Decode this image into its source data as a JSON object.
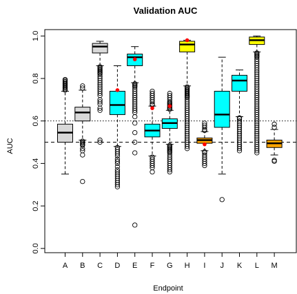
{
  "chart_data": {
    "type": "box",
    "title": "Validation AUC",
    "xlabel": "Endpoint",
    "ylabel": "AUC",
    "ylim": [
      -0.02,
      1.03
    ],
    "yticks": [
      "0.0",
      "0.2",
      "0.4",
      "0.6",
      "0.8",
      "1.0"
    ],
    "reference_lines": [
      {
        "y": 0.6,
        "style": "dotted"
      },
      {
        "y": 0.5,
        "style": "dashed"
      }
    ],
    "colors": {
      "gray": "#d9d9d9",
      "cyan": "#00ffff",
      "yellow": "#ffff00",
      "orange": "#ffa500",
      "mean_point": "#ff0000"
    },
    "categories": [
      "A",
      "B",
      "C",
      "D",
      "E",
      "F",
      "G",
      "H",
      "I",
      "J",
      "K",
      "L",
      "M"
    ],
    "boxes": [
      {
        "label": "A",
        "color": "gray",
        "whisker_low": 0.35,
        "q1": 0.5,
        "median": 0.545,
        "q3": 0.585,
        "whisker_high": 0.74,
        "mean": null,
        "outliers": [
          0.745,
          0.75,
          0.755,
          0.76,
          0.765,
          0.77,
          0.775,
          0.78,
          0.785,
          0.79,
          0.795
        ]
      },
      {
        "label": "B",
        "color": "gray",
        "whisker_low": 0.51,
        "q1": 0.6,
        "median": 0.64,
        "q3": 0.665,
        "whisker_high": 0.745,
        "mean": null,
        "outliers": [
          0.505,
          0.5,
          0.495,
          0.49,
          0.485,
          0.47,
          0.46,
          0.44,
          0.315,
          0.755,
          0.765
        ]
      },
      {
        "label": "C",
        "color": "gray",
        "whisker_low": 0.86,
        "q1": 0.92,
        "median": 0.95,
        "q3": 0.965,
        "whisker_high": 0.975,
        "mean": null,
        "outliers": [
          0.855,
          0.85,
          0.845,
          0.84,
          0.835,
          0.83,
          0.825,
          0.82,
          0.81,
          0.8,
          0.79,
          0.78,
          0.77,
          0.76,
          0.75,
          0.74,
          0.73,
          0.72,
          0.7,
          0.69,
          0.68,
          0.66,
          0.65,
          0.51,
          0.5
        ]
      },
      {
        "label": "D",
        "color": "cyan",
        "whisker_low": 0.48,
        "q1": 0.63,
        "median": 0.675,
        "q3": 0.74,
        "whisker_high": 0.86,
        "mean": 0.745,
        "outliers": [
          0.475,
          0.465,
          0.455,
          0.445,
          0.435,
          0.42,
          0.41,
          0.4,
          0.385,
          0.37,
          0.36,
          0.35,
          0.34,
          0.33,
          0.32,
          0.31,
          0.3,
          0.29
        ]
      },
      {
        "label": "E",
        "color": "cyan",
        "whisker_low": 0.78,
        "q1": 0.86,
        "median": 0.9,
        "q3": 0.915,
        "whisker_high": 0.95,
        "mean": 0.89,
        "outliers": [
          0.775,
          0.77,
          0.765,
          0.76,
          0.75,
          0.74,
          0.73,
          0.72,
          0.71,
          0.7,
          0.69,
          0.68,
          0.67,
          0.66,
          0.65,
          0.64,
          0.62,
          0.59,
          0.545,
          0.5,
          0.45,
          0.11
        ]
      },
      {
        "label": "F",
        "color": "cyan",
        "whisker_low": 0.435,
        "q1": 0.525,
        "median": 0.555,
        "q3": 0.585,
        "whisker_high": 0.67,
        "mean": 0.66,
        "outliers": [
          0.675,
          0.68,
          0.69,
          0.7,
          0.71,
          0.72,
          0.73,
          0.74,
          0.43,
          0.42,
          0.41,
          0.4,
          0.39,
          0.38,
          0.36
        ]
      },
      {
        "label": "G",
        "color": "cyan",
        "whisker_low": 0.49,
        "q1": 0.565,
        "median": 0.59,
        "q3": 0.61,
        "whisker_high": 0.65,
        "mean": 0.67,
        "outliers": [
          0.655,
          0.66,
          0.665,
          0.67,
          0.675,
          0.68,
          0.685,
          0.69,
          0.7,
          0.71,
          0.72,
          0.73,
          0.485,
          0.48,
          0.475,
          0.47,
          0.465,
          0.46,
          0.455,
          0.45,
          0.44,
          0.43,
          0.42,
          0.41,
          0.4,
          0.39,
          0.38,
          0.37,
          0.36
        ]
      },
      {
        "label": "H",
        "color": "yellow",
        "whisker_low": 0.765,
        "q1": 0.925,
        "median": 0.96,
        "q3": 0.975,
        "whisker_high": 0.98,
        "mean": 0.98,
        "outliers": [
          0.76,
          0.755,
          0.75,
          0.745,
          0.74,
          0.735,
          0.73,
          0.725,
          0.72,
          0.715,
          0.71,
          0.7,
          0.69,
          0.68,
          0.67,
          0.66,
          0.65,
          0.64,
          0.63,
          0.62,
          0.61,
          0.6,
          0.59,
          0.58,
          0.57,
          0.56,
          0.55,
          0.54,
          0.53,
          0.52,
          0.51,
          0.5,
          0.49,
          0.48,
          0.47
        ]
      },
      {
        "label": "I",
        "color": "orange",
        "whisker_low": 0.46,
        "q1": 0.495,
        "median": 0.51,
        "q3": 0.52,
        "whisker_high": 0.55,
        "mean": 0.49,
        "outliers": [
          0.555,
          0.56,
          0.57,
          0.58,
          0.59,
          0.455,
          0.45,
          0.44,
          0.43,
          0.42,
          0.41,
          0.4,
          0.39
        ]
      },
      {
        "label": "J",
        "color": "cyan",
        "whisker_low": 0.35,
        "q1": 0.57,
        "median": 0.63,
        "q3": 0.74,
        "whisker_high": 0.9,
        "mean": null,
        "outliers": [
          0.23
        ]
      },
      {
        "label": "K",
        "color": "cyan",
        "whisker_low": 0.62,
        "q1": 0.74,
        "median": 0.79,
        "q3": 0.815,
        "whisker_high": 0.84,
        "mean": null,
        "outliers": [
          0.615,
          0.61,
          0.6,
          0.59,
          0.58,
          0.57,
          0.56,
          0.55,
          0.54,
          0.53,
          0.52,
          0.51,
          0.5,
          0.49,
          0.48,
          0.47,
          0.46
        ]
      },
      {
        "label": "L",
        "color": "yellow",
        "whisker_low": 0.925,
        "q1": 0.96,
        "median": 0.98,
        "q3": 0.995,
        "whisker_high": 1.0,
        "mean": null,
        "outliers": [
          0.92,
          0.915,
          0.91,
          0.905,
          0.9,
          0.89,
          0.88,
          0.87,
          0.86,
          0.85,
          0.84,
          0.83,
          0.82,
          0.81,
          0.8,
          0.79,
          0.78,
          0.77,
          0.76,
          0.75,
          0.74,
          0.73,
          0.72,
          0.71,
          0.7,
          0.69,
          0.68,
          0.67,
          0.66,
          0.65,
          0.64,
          0.63,
          0.62,
          0.61,
          0.6,
          0.59,
          0.58,
          0.57,
          0.56,
          0.55,
          0.54,
          0.53,
          0.52,
          0.51,
          0.5,
          0.49,
          0.48,
          0.47,
          0.46,
          0.45
        ]
      },
      {
        "label": "M",
        "color": "orange",
        "whisker_low": 0.44,
        "q1": 0.475,
        "median": 0.495,
        "q3": 0.51,
        "whisker_high": 0.56,
        "mean": null,
        "outliers": [
          0.57,
          0.585,
          0.415,
          0.41
        ]
      }
    ]
  }
}
